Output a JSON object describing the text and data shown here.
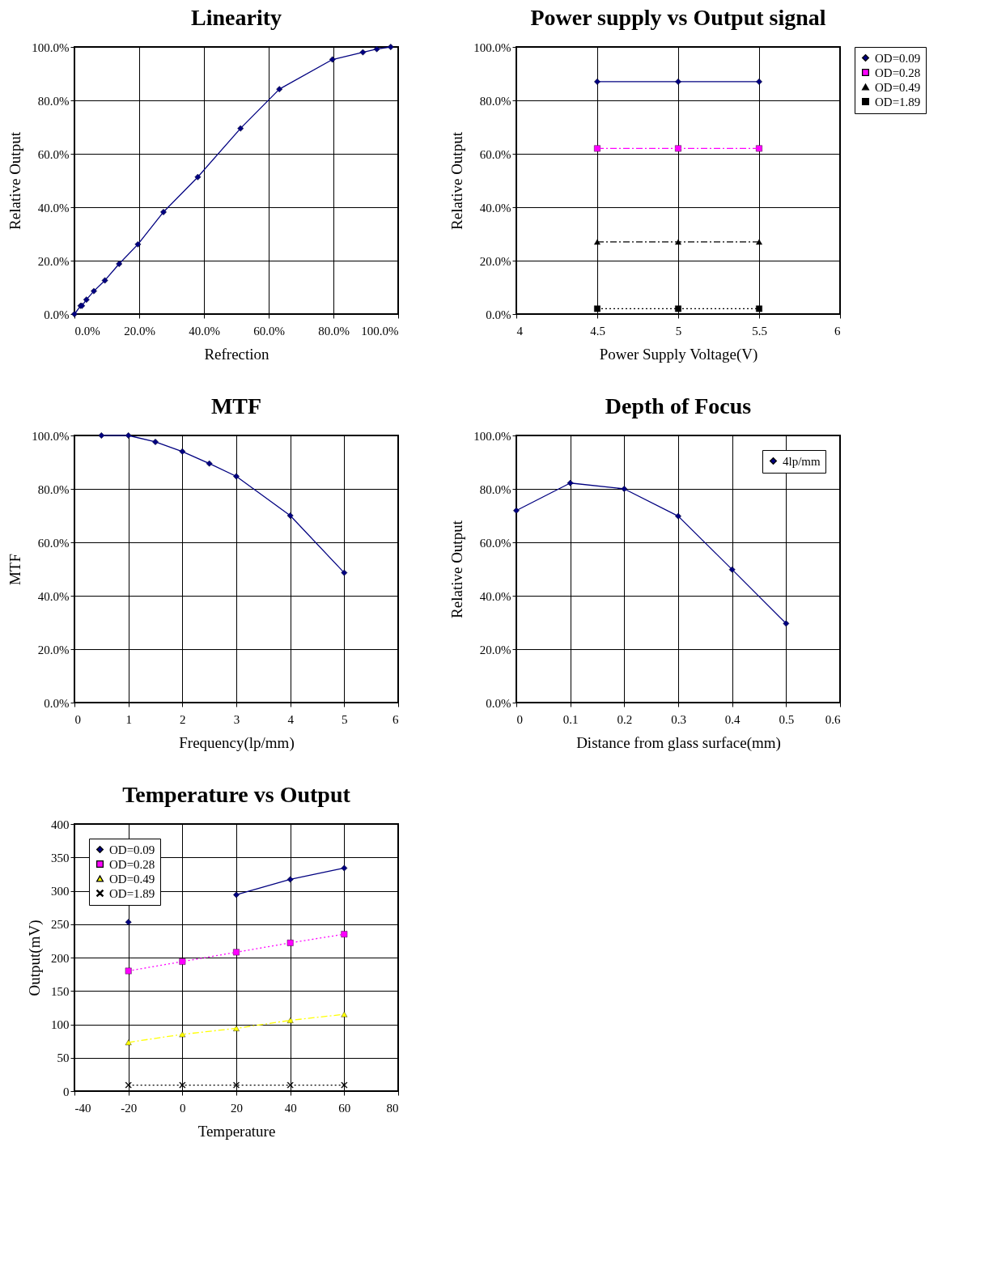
{
  "chart_data": [
    {
      "type": "line",
      "title": "Linearity",
      "xlabel": "Refrection",
      "ylabel": "Relative Output",
      "x": [
        0,
        1.9,
        2.3,
        3.7,
        6.0,
        9.4,
        13.8,
        19.6,
        27.5,
        38.1,
        51.3,
        63.3,
        79.7,
        89.1,
        93.4,
        97.7
      ],
      "series": [
        {
          "color": "#000080",
          "marker": "diamond",
          "line_style": "solid",
          "values": [
            0,
            3.1,
            3.1,
            5.4,
            8.6,
            12.6,
            18.8,
            26.1,
            38.2,
            51.3,
            69.5,
            84.2,
            95.3,
            98.0,
            99.2,
            100
          ]
        }
      ],
      "xlim": [
        0,
        100
      ],
      "ylim": [
        0,
        100
      ],
      "xticks": [
        {
          "value": 0,
          "label": "0.0%"
        },
        {
          "value": 20,
          "label": "20.0%"
        },
        {
          "value": 40,
          "label": "40.0%"
        },
        {
          "value": 60,
          "label": "60.0%"
        },
        {
          "value": 80,
          "label": "80.0%"
        },
        {
          "value": 100,
          "label": "100.0%"
        }
      ],
      "yticks": [
        {
          "value": 0,
          "label": "0.0%"
        },
        {
          "value": 20,
          "label": "20.0%"
        },
        {
          "value": 40,
          "label": "40.0%"
        },
        {
          "value": 60,
          "label": "60.0%"
        },
        {
          "value": 80,
          "label": "80.0%"
        },
        {
          "value": 100,
          "label": "100.0%"
        }
      ],
      "grid": true,
      "legend": false
    },
    {
      "type": "line",
      "title": "Power supply vs Output signal",
      "xlabel": "Power Supply Voltage(V)",
      "ylabel": "Relative Output",
      "x": [
        4.5,
        5,
        5.5
      ],
      "series": [
        {
          "name": "OD=0.09",
          "color": "#000080",
          "marker": "diamond",
          "line_style": "solid",
          "values": [
            87,
            87,
            87
          ]
        },
        {
          "name": "OD=0.28",
          "color": "#ff00ff",
          "marker": "square",
          "line_style": "dashed",
          "values": [
            62,
            62,
            62
          ]
        },
        {
          "name": "OD=0.49",
          "color": "#000000",
          "marker": "triangle",
          "line_style": "dashed",
          "values": [
            27,
            27,
            27
          ]
        },
        {
          "name": "OD=1.89",
          "color": "#000000",
          "marker": "square",
          "line_style": "dotted",
          "values": [
            2,
            2,
            2
          ]
        }
      ],
      "xlim": [
        4,
        6
      ],
      "ylim": [
        0,
        100
      ],
      "xticks": [
        4,
        4.5,
        5,
        5.5,
        6
      ],
      "yticks": [
        {
          "value": 0,
          "label": "0.0%"
        },
        {
          "value": 20,
          "label": "20.0%"
        },
        {
          "value": 40,
          "label": "40.0%"
        },
        {
          "value": 60,
          "label": "60.0%"
        },
        {
          "value": 80,
          "label": "80.0%"
        },
        {
          "value": 100,
          "label": "100.0%"
        }
      ],
      "grid": true,
      "legend": "right"
    },
    {
      "type": "line",
      "title": "MTF",
      "xlabel": "Frequency(lp/mm)",
      "ylabel": "MTF",
      "x": [
        0.5,
        1,
        1.5,
        2,
        2.5,
        3,
        4,
        5
      ],
      "series": [
        {
          "color": "#000080",
          "marker": "diamond",
          "line_style": "solid",
          "values": [
            100,
            100,
            97.6,
            94.0,
            89.5,
            84.7,
            70.0,
            48.6
          ]
        }
      ],
      "xlim": [
        0,
        6
      ],
      "ylim": [
        0,
        100
      ],
      "xticks": [
        0,
        1,
        2,
        3,
        4,
        5,
        6
      ],
      "yticks": [
        {
          "value": 0,
          "label": "0.0%"
        },
        {
          "value": 20,
          "label": "20.0%"
        },
        {
          "value": 40,
          "label": "40.0%"
        },
        {
          "value": 60,
          "label": "60.0%"
        },
        {
          "value": 80,
          "label": "80.0%"
        },
        {
          "value": 100,
          "label": "100.0%"
        }
      ],
      "grid": true,
      "legend": false
    },
    {
      "type": "line",
      "title": "Depth of Focus",
      "xlabel": "Distance from glass surface(mm)",
      "ylabel": "Relative Output",
      "x": [
        0,
        0.1,
        0.2,
        0.3,
        0.4,
        0.5
      ],
      "series": [
        {
          "name": "4lp/mm",
          "color": "#000080",
          "marker": "diamond",
          "line_style": "solid",
          "values": [
            71.9,
            82.2,
            80.0,
            69.8,
            49.8,
            29.6
          ]
        }
      ],
      "xlim": [
        0,
        0.6
      ],
      "ylim": [
        0,
        100
      ],
      "xticks": [
        0,
        0.1,
        0.2,
        0.3,
        0.4,
        0.5,
        0.6
      ],
      "yticks": [
        {
          "value": 0,
          "label": "0.0%"
        },
        {
          "value": 20,
          "label": "20.0%"
        },
        {
          "value": 40,
          "label": "40.0%"
        },
        {
          "value": 60,
          "label": "60.0%"
        },
        {
          "value": 80,
          "label": "80.0%"
        },
        {
          "value": 100,
          "label": "100.0%"
        }
      ],
      "grid": true,
      "legend": "top right"
    },
    {
      "type": "line",
      "title": "Temperature vs Output",
      "xlabel": "Temperature",
      "ylabel": "Output(mV)",
      "x": [
        -20,
        0,
        20,
        40,
        60
      ],
      "series": [
        {
          "name": "OD=0.09",
          "color": "#000080",
          "marker": "diamond",
          "line_style": "solid",
          "values": [
            253,
            null,
            294,
            317,
            334
          ]
        },
        {
          "name": "OD=0.28",
          "color": "#ff00ff",
          "marker": "square",
          "line_style": "dotted",
          "values": [
            180,
            194,
            208,
            222,
            235
          ]
        },
        {
          "name": "OD=0.49",
          "color": "#ffff00",
          "marker": "triangle",
          "line_style": "dashed",
          "values": [
            73,
            85,
            94,
            106,
            115
          ]
        },
        {
          "name": "OD=1.89",
          "color": "#000000",
          "marker": "cross",
          "line_style": "dotted",
          "values": [
            9,
            9,
            9,
            9,
            9
          ]
        }
      ],
      "xlim": [
        -40,
        80
      ],
      "ylim": [
        0,
        400
      ],
      "xticks": [
        -40,
        -20,
        0,
        20,
        40,
        60,
        80
      ],
      "yticks": [
        0,
        50,
        100,
        150,
        200,
        250,
        300,
        350,
        400
      ],
      "grid": true,
      "legend": "top left"
    }
  ]
}
